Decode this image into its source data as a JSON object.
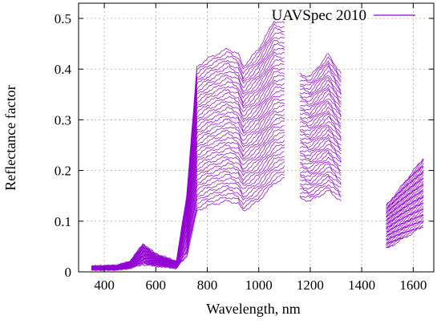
{
  "chart_data": {
    "type": "line",
    "title": "",
    "xlabel": "Wavelength, nm",
    "ylabel": "Reflectance factor",
    "xlim": [
      300,
      1680
    ],
    "ylim": [
      0,
      0.53
    ],
    "xticks": [
      400,
      600,
      800,
      1000,
      1200,
      1400,
      1600
    ],
    "yticks": [
      0,
      0.1,
      0.2,
      0.3,
      0.4,
      0.5
    ],
    "xtick_labels": [
      "400",
      "600",
      "800",
      "1000",
      "1200",
      "1400",
      "1600"
    ],
    "ytick_labels": [
      "0",
      "0.1",
      "0.2",
      "0.3",
      "0.4",
      "0.5"
    ],
    "grid": true,
    "legend": {
      "position": "top-right",
      "entries": [
        "UAVSpec 2010"
      ]
    },
    "series_color": "#9400d3",
    "series_count": 42,
    "spectrum_segments": [
      [
        350,
        1100
      ],
      [
        1160,
        1320
      ],
      [
        1495,
        1640
      ]
    ],
    "reference_curves": {
      "upper": [
        [
          350,
          0.01
        ],
        [
          450,
          0.012
        ],
        [
          500,
          0.02
        ],
        [
          550,
          0.055
        ],
        [
          600,
          0.035
        ],
        [
          680,
          0.02
        ],
        [
          720,
          0.15
        ],
        [
          760,
          0.405
        ],
        [
          800,
          0.42
        ],
        [
          880,
          0.44
        ],
        [
          920,
          0.43
        ],
        [
          940,
          0.405
        ],
        [
          1000,
          0.44
        ],
        [
          1060,
          0.495
        ],
        [
          1100,
          0.49
        ],
        [
          1160,
          0.39
        ],
        [
          1200,
          0.385
        ],
        [
          1270,
          0.43
        ],
        [
          1320,
          0.39
        ],
        [
          1495,
          0.13
        ],
        [
          1640,
          0.225
        ]
      ],
      "lower": [
        [
          350,
          0.005
        ],
        [
          450,
          0.005
        ],
        [
          500,
          0.008
        ],
        [
          550,
          0.015
        ],
        [
          600,
          0.012
        ],
        [
          680,
          0.008
        ],
        [
          720,
          0.03
        ],
        [
          760,
          0.12
        ],
        [
          800,
          0.13
        ],
        [
          880,
          0.14
        ],
        [
          920,
          0.135
        ],
        [
          940,
          0.12
        ],
        [
          1000,
          0.14
        ],
        [
          1060,
          0.175
        ],
        [
          1100,
          0.185
        ],
        [
          1160,
          0.145
        ],
        [
          1200,
          0.14
        ],
        [
          1270,
          0.16
        ],
        [
          1320,
          0.14
        ],
        [
          1495,
          0.045
        ],
        [
          1640,
          0.09
        ]
      ]
    }
  }
}
